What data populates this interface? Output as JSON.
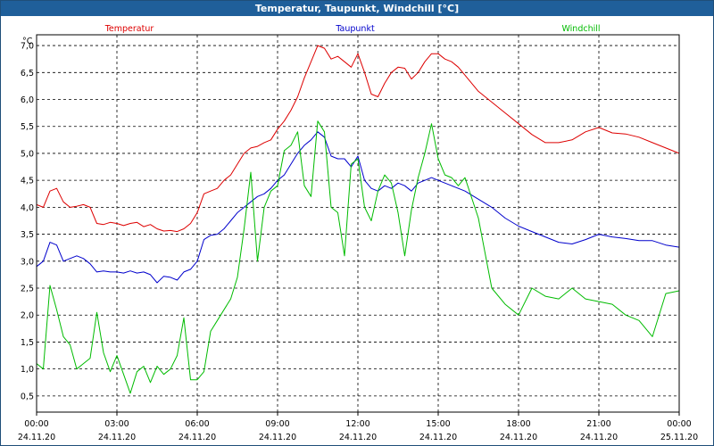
{
  "window": {
    "title": "Temperatur, Taupunkt, Windchill [°C]"
  },
  "chart_data": {
    "type": "line",
    "title": "Temperatur, Taupunkt, Windchill [°C]",
    "ylabel": "°C",
    "ylim": [
      0.2,
      7.2
    ],
    "xlim": [
      0,
      24
    ],
    "grid": true,
    "legend_position": "top",
    "yticks": [
      {
        "v": 0.5,
        "label": "0,5"
      },
      {
        "v": 1.0,
        "label": "1,0"
      },
      {
        "v": 1.5,
        "label": "1,5"
      },
      {
        "v": 2.0,
        "label": "2,0"
      },
      {
        "v": 2.5,
        "label": "2,5"
      },
      {
        "v": 3.0,
        "label": "3,0"
      },
      {
        "v": 3.5,
        "label": "3,5"
      },
      {
        "v": 4.0,
        "label": "4,0"
      },
      {
        "v": 4.5,
        "label": "4,5"
      },
      {
        "v": 5.0,
        "label": "5,0"
      },
      {
        "v": 5.5,
        "label": "5,5"
      },
      {
        "v": 6.0,
        "label": "6,0"
      },
      {
        "v": 6.5,
        "label": "6,5"
      },
      {
        "v": 7.0,
        "label": "7,0"
      }
    ],
    "xticks": [
      {
        "v": 0,
        "time": "00:00",
        "date": "24.11.20"
      },
      {
        "v": 3,
        "time": "03:00",
        "date": "24.11.20"
      },
      {
        "v": 6,
        "time": "06:00",
        "date": "24.11.20"
      },
      {
        "v": 9,
        "time": "09:00",
        "date": "24.11.20"
      },
      {
        "v": 12,
        "time": "12:00",
        "date": "24.11.20"
      },
      {
        "v": 15,
        "time": "15:00",
        "date": "24.11.20"
      },
      {
        "v": 18,
        "time": "18:00",
        "date": "24.11.20"
      },
      {
        "v": 21,
        "time": "21:00",
        "date": "24.11.20"
      },
      {
        "v": 24,
        "time": "00:00",
        "date": "25.11.20"
      }
    ],
    "series": [
      {
        "name": "Temperatur",
        "color": "#dd0000",
        "x": [
          0,
          0.25,
          0.5,
          0.75,
          1,
          1.25,
          1.5,
          1.75,
          2,
          2.25,
          2.5,
          2.75,
          3,
          3.25,
          3.5,
          3.75,
          4,
          4.25,
          4.5,
          4.75,
          5,
          5.25,
          5.5,
          5.75,
          6,
          6.25,
          6.5,
          6.75,
          7,
          7.25,
          7.5,
          7.75,
          8,
          8.25,
          8.5,
          8.75,
          9,
          9.25,
          9.5,
          9.75,
          10,
          10.25,
          10.5,
          10.75,
          11,
          11.25,
          11.5,
          11.75,
          12,
          12.25,
          12.5,
          12.75,
          13,
          13.25,
          13.5,
          13.75,
          14,
          14.25,
          14.5,
          14.75,
          15,
          15.25,
          15.5,
          15.75,
          16,
          16.5,
          17,
          17.5,
          18,
          18.5,
          19,
          19.5,
          20,
          20.5,
          21,
          21.5,
          22,
          22.5,
          23,
          23.5,
          24
        ],
        "values": [
          4.05,
          4.0,
          4.3,
          4.35,
          4.1,
          4.0,
          4.02,
          4.05,
          4.0,
          3.7,
          3.68,
          3.72,
          3.7,
          3.66,
          3.7,
          3.72,
          3.64,
          3.68,
          3.6,
          3.56,
          3.57,
          3.55,
          3.6,
          3.7,
          3.9,
          4.25,
          4.3,
          4.35,
          4.5,
          4.6,
          4.8,
          5.0,
          5.1,
          5.13,
          5.2,
          5.25,
          5.45,
          5.6,
          5.8,
          6.05,
          6.4,
          6.7,
          7.0,
          6.95,
          6.75,
          6.8,
          6.7,
          6.6,
          6.85,
          6.5,
          6.1,
          6.05,
          6.3,
          6.5,
          6.6,
          6.58,
          6.38,
          6.5,
          6.7,
          6.85,
          6.85,
          6.75,
          6.7,
          6.6,
          6.45,
          6.15,
          5.95,
          5.75,
          5.55,
          5.35,
          5.2,
          5.2,
          5.25,
          5.4,
          5.48,
          5.38,
          5.36,
          5.3,
          5.2,
          5.1,
          5.0
        ]
      },
      {
        "name": "Taupunkt",
        "color": "#0000cc",
        "x": [
          0,
          0.25,
          0.5,
          0.75,
          1,
          1.25,
          1.5,
          1.75,
          2,
          2.25,
          2.5,
          2.75,
          3,
          3.25,
          3.5,
          3.75,
          4,
          4.25,
          4.5,
          4.75,
          5,
          5.25,
          5.5,
          5.75,
          6,
          6.25,
          6.5,
          6.75,
          7,
          7.25,
          7.5,
          7.75,
          8,
          8.25,
          8.5,
          8.75,
          9,
          9.25,
          9.5,
          9.75,
          10,
          10.25,
          10.5,
          10.75,
          11,
          11.25,
          11.5,
          11.75,
          12,
          12.25,
          12.5,
          12.75,
          13,
          13.25,
          13.5,
          13.75,
          14,
          14.25,
          14.5,
          14.75,
          15,
          15.25,
          15.5,
          15.75,
          16,
          16.5,
          17,
          17.5,
          18,
          18.5,
          19,
          19.5,
          20,
          20.5,
          21,
          21.5,
          22,
          22.5,
          23,
          23.5,
          24
        ],
        "values": [
          2.9,
          3.0,
          3.35,
          3.3,
          3.0,
          3.05,
          3.1,
          3.05,
          2.95,
          2.8,
          2.82,
          2.8,
          2.8,
          2.78,
          2.82,
          2.78,
          2.8,
          2.75,
          2.6,
          2.72,
          2.7,
          2.65,
          2.8,
          2.85,
          3.0,
          3.4,
          3.48,
          3.5,
          3.6,
          3.75,
          3.9,
          4.0,
          4.1,
          4.2,
          4.25,
          4.35,
          4.5,
          4.6,
          4.8,
          5.0,
          5.15,
          5.25,
          5.4,
          5.3,
          4.95,
          4.9,
          4.9,
          4.75,
          4.95,
          4.5,
          4.35,
          4.3,
          4.4,
          4.35,
          4.45,
          4.4,
          4.3,
          4.45,
          4.5,
          4.55,
          4.5,
          4.45,
          4.4,
          4.35,
          4.3,
          4.15,
          4.0,
          3.8,
          3.65,
          3.55,
          3.45,
          3.35,
          3.32,
          3.4,
          3.5,
          3.45,
          3.42,
          3.38,
          3.38,
          3.3,
          3.26
        ]
      },
      {
        "name": "Windchill",
        "color": "#00bb00",
        "x": [
          0,
          0.25,
          0.5,
          0.75,
          1,
          1.25,
          1.5,
          1.75,
          2,
          2.25,
          2.5,
          2.75,
          3,
          3.25,
          3.5,
          3.75,
          4,
          4.25,
          4.5,
          4.75,
          5,
          5.25,
          5.5,
          5.75,
          6,
          6.25,
          6.5,
          6.75,
          7,
          7.25,
          7.5,
          7.75,
          8,
          8.25,
          8.5,
          8.75,
          9,
          9.25,
          9.5,
          9.75,
          10,
          10.25,
          10.5,
          10.75,
          11,
          11.25,
          11.5,
          11.75,
          12,
          12.25,
          12.5,
          12.75,
          13,
          13.25,
          13.5,
          13.75,
          14,
          14.25,
          14.5,
          14.75,
          15,
          15.25,
          15.5,
          15.75,
          16,
          16.5,
          17,
          17.5,
          18,
          18.5,
          19,
          19.5,
          20,
          20.5,
          21,
          21.5,
          22,
          22.5,
          23,
          23.5,
          24
        ],
        "values": [
          1.1,
          1.0,
          2.55,
          2.1,
          1.6,
          1.45,
          1.0,
          1.1,
          1.2,
          2.05,
          1.3,
          0.95,
          1.25,
          0.9,
          0.55,
          0.95,
          1.05,
          0.75,
          1.05,
          0.9,
          1.0,
          1.25,
          1.95,
          0.8,
          0.8,
          0.95,
          1.7,
          1.9,
          2.1,
          2.3,
          2.7,
          3.6,
          4.65,
          3.0,
          4.0,
          4.3,
          4.4,
          5.05,
          5.15,
          5.4,
          4.4,
          4.2,
          5.6,
          5.4,
          4.0,
          3.9,
          3.1,
          4.8,
          4.9,
          4.0,
          3.75,
          4.3,
          4.6,
          4.45,
          3.9,
          3.1,
          3.95,
          4.55,
          5.0,
          5.55,
          4.9,
          4.6,
          4.55,
          4.4,
          4.55,
          3.8,
          2.5,
          2.2,
          2.0,
          2.5,
          2.35,
          2.3,
          2.5,
          2.3,
          2.25,
          2.2,
          2.0,
          1.9,
          1.6,
          2.4,
          2.45
        ]
      }
    ]
  }
}
